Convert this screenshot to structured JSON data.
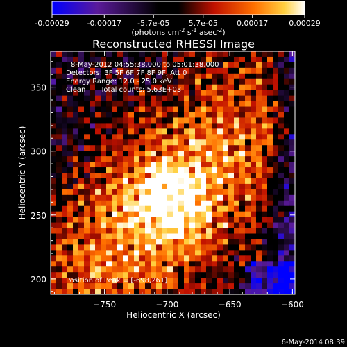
{
  "colorbar": {
    "tick_labels": [
      "-0.00029",
      "-0.00017",
      "-5.7e-05",
      "5.7e-05",
      "0.00017",
      "0.00029"
    ],
    "tick_values": [
      -0.00029,
      -0.00017,
      -5.7e-05,
      5.7e-05,
      0.00017,
      0.00029
    ],
    "range": [
      -0.00029,
      0.00029
    ],
    "unit_label": "(photons cm",
    "unit_sup1": "-2",
    "unit_mid": " s",
    "unit_sup2": "-1",
    "unit_end": " asec",
    "unit_sup3": "-2",
    "unit_close": ")",
    "colors": [
      "#0000ff",
      "#5a1a9a",
      "#000000",
      "#c01000",
      "#ff7000",
      "#ffd040",
      "#ffffff"
    ]
  },
  "chart_data": {
    "type": "heatmap",
    "title": "Reconstructed RHESSI Image",
    "xlabel": "Heliocentric X (arcsec)",
    "ylabel": "Heliocentric Y (arcsec)",
    "xlim": [
      -793,
      -598
    ],
    "ylim": [
      188,
      378
    ],
    "x_ticks": [
      -750,
      -700,
      -650,
      -600
    ],
    "x_tick_labels": [
      "−750",
      "−700",
      "−650",
      "−600"
    ],
    "y_ticks": [
      200,
      250,
      300,
      350
    ],
    "y_tick_labels": [
      "200",
      "250",
      "300",
      "350"
    ],
    "peak": [
      -698,
      261
    ],
    "annotations": {
      "time": "8-May-2012 04:55:38.000 to 05:01:38.000",
      "detectors": "Detectors: 3F 5F 6F 7F 8F 9F, Att 0",
      "energy": "Energy Range: 12.0 - 25.0 keV",
      "method": "Clean",
      "counts": "Total counts: 5.63E+03",
      "peak_text": "Position of Peak = [-698,261]"
    }
  },
  "footer": {
    "timestamp": "6-May-2014 08:39"
  }
}
